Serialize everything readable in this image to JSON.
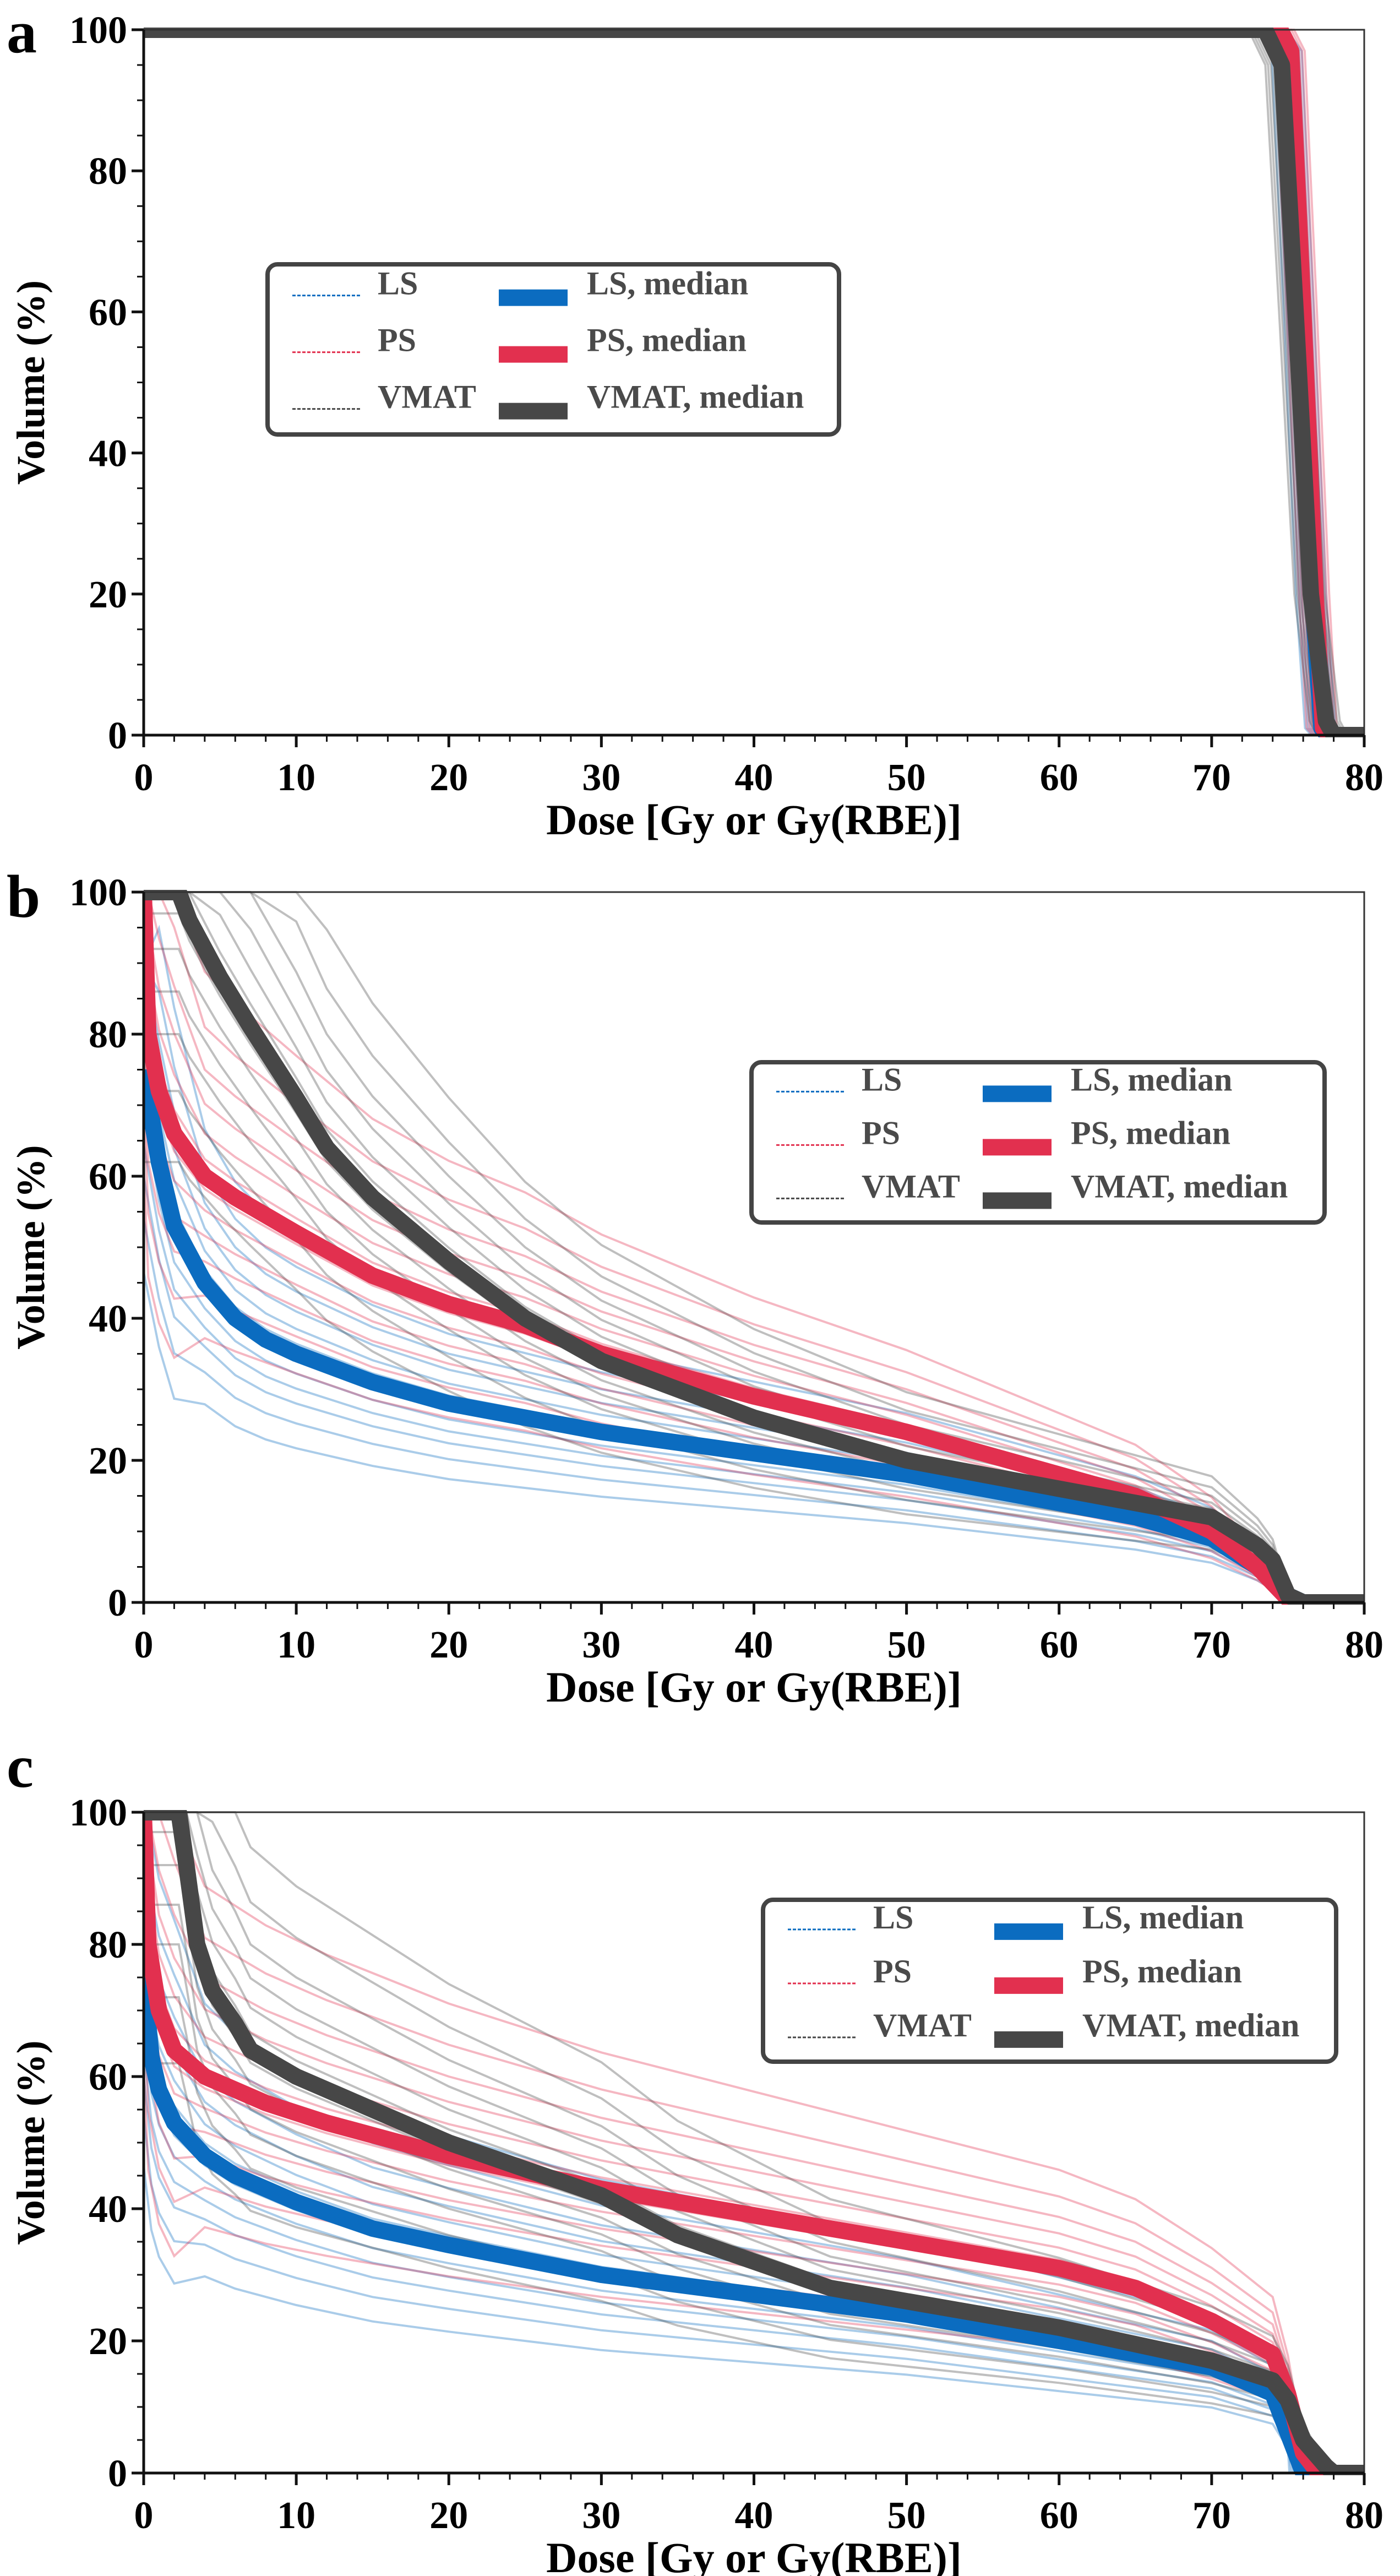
{
  "colors": {
    "LS": "#0b6cc0",
    "PS": "#e2304f",
    "VMAT": "#474747",
    "legend_text": "#4a4a4a"
  },
  "chart_data": [
    {
      "panel_label": "a",
      "type": "line",
      "xlabel": "Dose [Gy or Gy(RBE)]",
      "ylabel": "Volume (%)",
      "xlim": [
        0,
        80
      ],
      "ylim": [
        0,
        100
      ],
      "xticks": [
        "0",
        "10",
        "20",
        "30",
        "40",
        "50",
        "60",
        "70",
        "80"
      ],
      "yticks": [
        "0",
        "20",
        "40",
        "60",
        "80",
        "100"
      ],
      "legend": {
        "placement": "center-left",
        "entries": [
          "LS",
          "PS",
          "VMAT",
          "LS, median",
          "PS, median",
          "VMAT, median"
        ]
      },
      "series": [
        {
          "name": "LS, median",
          "key": "LS",
          "points": [
            [
              0,
              100
            ],
            [
              74,
              100
            ],
            [
              75,
              97
            ],
            [
              75.8,
              60
            ],
            [
              76.6,
              20
            ],
            [
              77.2,
              1
            ],
            [
              77.6,
              0
            ],
            [
              80,
              0
            ]
          ]
        },
        {
          "name": "PS, median",
          "key": "PS",
          "points": [
            [
              0,
              100
            ],
            [
              74.5,
              100
            ],
            [
              75.2,
              97
            ],
            [
              76,
              60
            ],
            [
              76.8,
              20
            ],
            [
              77.3,
              1
            ],
            [
              77.7,
              0
            ],
            [
              80,
              0
            ]
          ]
        },
        {
          "name": "VMAT, median",
          "key": "VMAT",
          "points": [
            [
              0,
              100
            ],
            [
              73.5,
              100
            ],
            [
              74.6,
              95
            ],
            [
              75.5,
              60
            ],
            [
              76.5,
              20
            ],
            [
              77.5,
              2
            ],
            [
              78,
              0
            ],
            [
              80,
              0
            ]
          ]
        }
      ]
    },
    {
      "panel_label": "b",
      "type": "line",
      "xlabel": "Dose [Gy or Gy(RBE)]",
      "ylabel": "Volume (%)",
      "xlim": [
        0,
        80
      ],
      "ylim": [
        0,
        100
      ],
      "xticks": [
        "0",
        "10",
        "20",
        "30",
        "40",
        "50",
        "60",
        "70",
        "80"
      ],
      "yticks": [
        "0",
        "20",
        "40",
        "60",
        "80",
        "100"
      ],
      "legend": {
        "placement": "upper-right",
        "entries": [
          "LS",
          "PS",
          "VMAT",
          "LS, median",
          "PS, median",
          "VMAT, median"
        ]
      },
      "series": [
        {
          "name": "LS, median",
          "key": "LS",
          "points": [
            [
              0,
              75
            ],
            [
              1,
              62
            ],
            [
              2,
              53
            ],
            [
              4,
              45
            ],
            [
              6,
              40
            ],
            [
              8,
              37
            ],
            [
              10,
              35
            ],
            [
              15,
              31
            ],
            [
              20,
              28
            ],
            [
              30,
              24
            ],
            [
              40,
              21
            ],
            [
              50,
              18
            ],
            [
              60,
              14
            ],
            [
              65,
              12
            ],
            [
              70,
              9
            ],
            [
              73,
              5
            ],
            [
              75,
              1
            ],
            [
              76,
              0
            ],
            [
              80,
              0
            ]
          ]
        },
        {
          "name": "PS, median",
          "key": "PS",
          "points": [
            [
              0,
              100
            ],
            [
              0.3,
              80
            ],
            [
              1,
              72
            ],
            [
              2,
              66
            ],
            [
              4,
              60
            ],
            [
              6,
              57
            ],
            [
              10,
              52
            ],
            [
              15,
              46
            ],
            [
              20,
              42
            ],
            [
              25,
              39
            ],
            [
              30,
              35
            ],
            [
              40,
              29
            ],
            [
              50,
              24
            ],
            [
              60,
              18
            ],
            [
              65,
              15
            ],
            [
              70,
              10
            ],
            [
              73,
              5
            ],
            [
              75,
              0.5
            ],
            [
              76,
              0
            ],
            [
              80,
              0
            ]
          ]
        },
        {
          "name": "VMAT, median",
          "key": "VMAT",
          "points": [
            [
              0,
              100
            ],
            [
              2.3,
              100
            ],
            [
              3,
              96
            ],
            [
              5,
              88
            ],
            [
              7,
              81
            ],
            [
              10,
              71
            ],
            [
              12,
              64
            ],
            [
              15,
              57
            ],
            [
              20,
              48
            ],
            [
              25,
              40
            ],
            [
              30,
              34
            ],
            [
              35,
              30
            ],
            [
              40,
              26
            ],
            [
              50,
              20
            ],
            [
              60,
              16
            ],
            [
              65,
              14
            ],
            [
              70,
              12
            ],
            [
              73,
              8
            ],
            [
              74,
              6
            ],
            [
              75,
              1
            ],
            [
              76,
              0
            ],
            [
              80,
              0
            ]
          ]
        }
      ]
    },
    {
      "panel_label": "c",
      "type": "line",
      "xlabel": "Dose [Gy or Gy(RBE)]",
      "ylabel": "Volume (%)",
      "xlim": [
        0,
        80
      ],
      "ylim": [
        0,
        100
      ],
      "xticks": [
        "0",
        "10",
        "20",
        "30",
        "40",
        "50",
        "60",
        "70",
        "80"
      ],
      "yticks": [
        "0",
        "20",
        "40",
        "60",
        "80",
        "100"
      ],
      "legend": {
        "placement": "upper-right",
        "entries": [
          "LS",
          "PS",
          "VMAT",
          "LS, median",
          "PS, median",
          "VMAT, median"
        ]
      },
      "series": [
        {
          "name": "LS, median",
          "key": "LS",
          "points": [
            [
              0,
              75
            ],
            [
              0.5,
              63
            ],
            [
              1,
              58
            ],
            [
              2,
              53
            ],
            [
              4,
              48
            ],
            [
              6,
              45
            ],
            [
              10,
              41
            ],
            [
              15,
              37
            ],
            [
              20,
              34.5
            ],
            [
              30,
              30
            ],
            [
              40,
              27
            ],
            [
              50,
              24
            ],
            [
              60,
              20
            ],
            [
              70,
              16
            ],
            [
              74,
              12
            ],
            [
              75,
              6
            ],
            [
              76,
              0
            ],
            [
              80,
              0
            ]
          ]
        },
        {
          "name": "PS, median",
          "key": "PS",
          "points": [
            [
              0,
              100
            ],
            [
              0.3,
              80
            ],
            [
              1,
              70
            ],
            [
              2,
              64
            ],
            [
              4,
              60
            ],
            [
              8,
              56
            ],
            [
              12,
              53
            ],
            [
              20,
              48
            ],
            [
              30,
              43
            ],
            [
              40,
              39
            ],
            [
              50,
              35
            ],
            [
              60,
              31
            ],
            [
              65,
              28
            ],
            [
              70,
              23
            ],
            [
              74,
              18
            ],
            [
              75,
              12
            ],
            [
              76,
              3
            ],
            [
              77,
              0
            ],
            [
              80,
              0
            ]
          ]
        },
        {
          "name": "VMAT, median",
          "key": "VMAT",
          "points": [
            [
              0,
              100
            ],
            [
              2.3,
              100
            ],
            [
              2.8,
              92
            ],
            [
              3.5,
              80
            ],
            [
              4.5,
              73
            ],
            [
              6,
              68
            ],
            [
              7,
              64
            ],
            [
              10,
              60
            ],
            [
              15,
              55
            ],
            [
              20,
              50
            ],
            [
              25,
              46
            ],
            [
              30,
              42
            ],
            [
              35,
              36
            ],
            [
              40,
              32
            ],
            [
              45,
              28
            ],
            [
              50,
              26
            ],
            [
              60,
              22
            ],
            [
              70,
              17
            ],
            [
              74,
              14
            ],
            [
              75,
              11
            ],
            [
              76,
              5
            ],
            [
              77.5,
              1
            ],
            [
              78,
              0
            ],
            [
              80,
              0
            ]
          ]
        }
      ]
    }
  ]
}
